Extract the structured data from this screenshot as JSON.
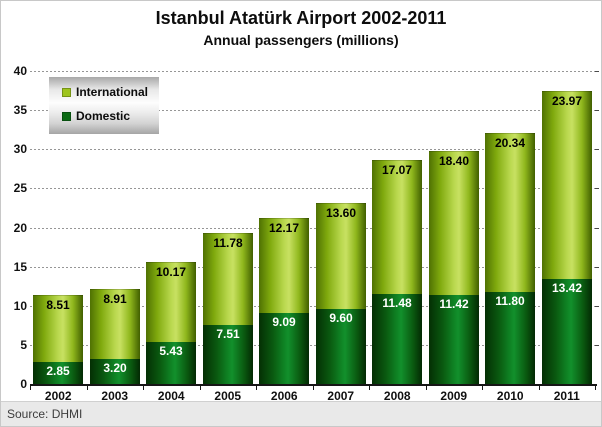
{
  "title": "Istanbul Atatürk Airport 2002-2011",
  "subtitle": "Annual passengers (millions)",
  "source": "Source: DHMI",
  "legend": {
    "items": [
      {
        "label": "International",
        "color": "#9ec41d"
      },
      {
        "label": "Domestic",
        "color": "#0b6b14"
      }
    ]
  },
  "chart_data": {
    "type": "bar",
    "stacked": true,
    "title": "Istanbul Atatürk Airport 2002-2011",
    "subtitle": "Annual passengers (millions)",
    "categories": [
      "2002",
      "2003",
      "2004",
      "2005",
      "2006",
      "2007",
      "2008",
      "2009",
      "2010",
      "2011"
    ],
    "series": [
      {
        "name": "Domestic",
        "color": "#0b6b14",
        "label_color": "#ffffff",
        "values": [
          2.85,
          3.2,
          5.43,
          7.51,
          9.09,
          9.6,
          11.48,
          11.42,
          11.8,
          13.42
        ]
      },
      {
        "name": "International",
        "color": "#9ec41d",
        "label_color": "#000000",
        "values": [
          8.51,
          8.91,
          10.17,
          11.78,
          12.17,
          13.6,
          17.07,
          18.4,
          20.34,
          23.97
        ]
      }
    ],
    "ylim": [
      0,
      40
    ],
    "yticks": [
      0,
      5,
      10,
      15,
      20,
      25,
      30,
      35,
      40
    ],
    "grid": "horizontal-dotted",
    "legend_position": "top-left",
    "value_label_format": "0.00"
  }
}
